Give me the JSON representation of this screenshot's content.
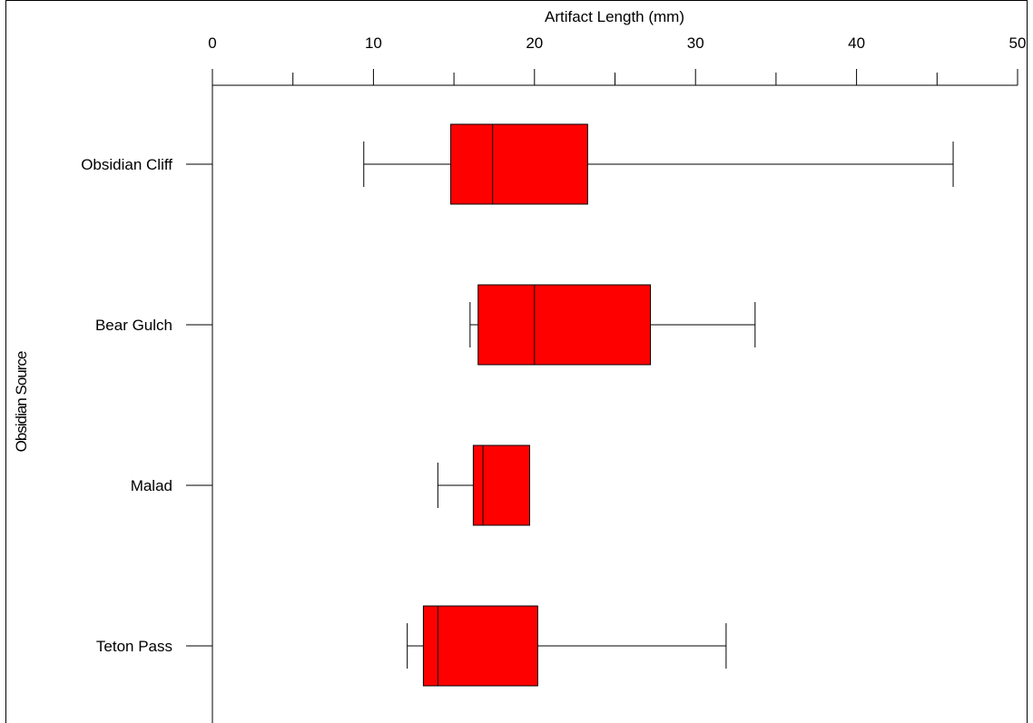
{
  "chart_data": {
    "type": "boxplot",
    "orientation": "horizontal",
    "xlabel": "Artifact Length (mm)",
    "ylabel": "Obsidian Source",
    "xlim": [
      0,
      50
    ],
    "x_ticks": [
      0,
      10,
      20,
      30,
      40,
      50
    ],
    "x_axis_position": "top",
    "grid": false,
    "box_color": "#ff0000",
    "categories": [
      "Obsidian Cliff",
      "Bear Gulch",
      "Malad",
      "Teton Pass"
    ],
    "series": [
      {
        "category": "Obsidian Cliff",
        "whisker_low": 9.4,
        "q1": 14.8,
        "median": 17.4,
        "q3": 23.3,
        "whisker_high": 46.0
      },
      {
        "category": "Bear Gulch",
        "whisker_low": 16.0,
        "q1": 16.5,
        "median": 20.0,
        "q3": 27.2,
        "whisker_high": 33.7
      },
      {
        "category": "Malad",
        "whisker_low": 14.0,
        "q1": 16.2,
        "median": 16.8,
        "q3": 19.7,
        "whisker_high": 19.7
      },
      {
        "category": "Teton Pass",
        "whisker_low": 12.1,
        "q1": 13.1,
        "median": 14.0,
        "q3": 20.2,
        "whisker_high": 31.9
      }
    ]
  }
}
